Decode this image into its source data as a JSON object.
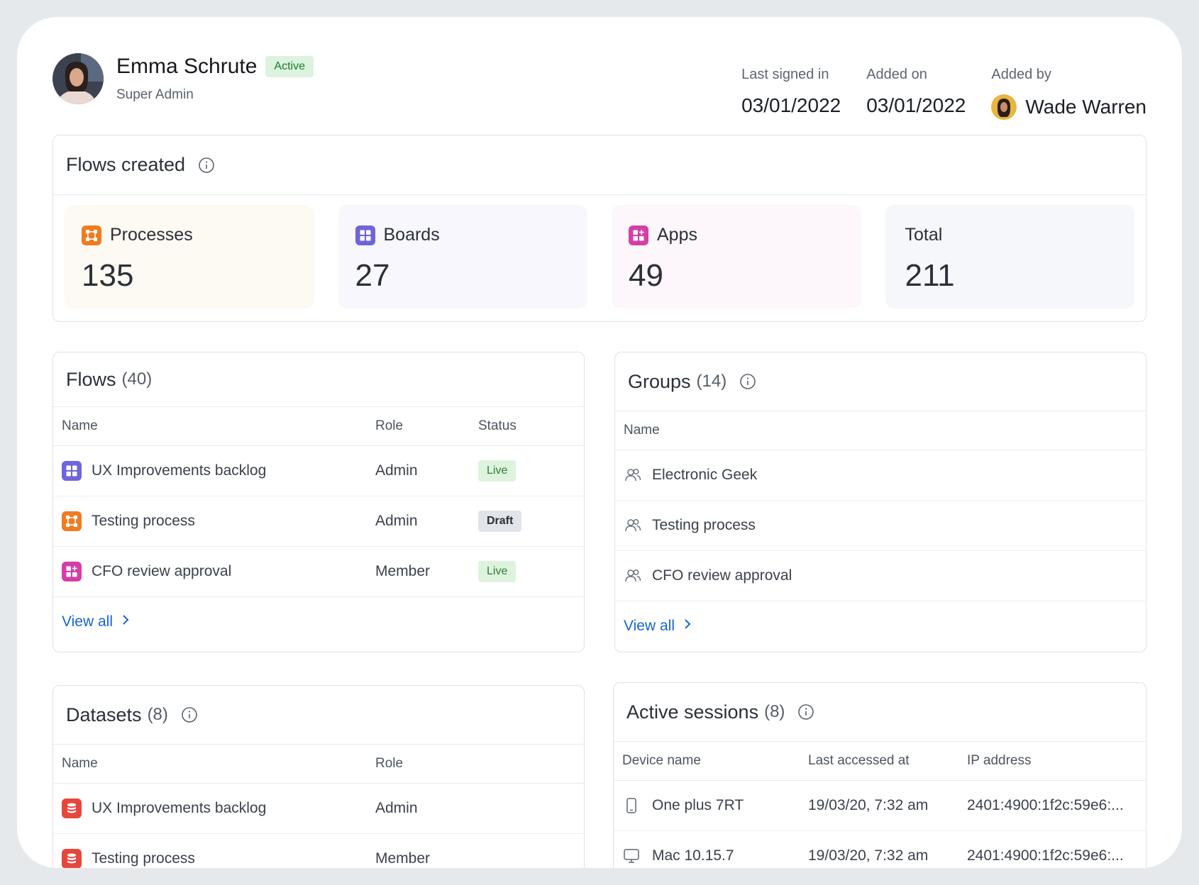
{
  "user": {
    "name": "Emma Schrute",
    "status": "Active",
    "role": "Super Admin"
  },
  "meta": {
    "last_signed_in_label": "Last signed in",
    "last_signed_in_value": "03/01/2022",
    "added_on_label": "Added on",
    "added_on_value": "03/01/2022",
    "added_by_label": "Added by",
    "added_by_value": "Wade Warren"
  },
  "flows_created": {
    "title": "Flows created",
    "stats": [
      {
        "label": "Processes",
        "value": "135",
        "icon": "process-icon",
        "color": "#f07c21"
      },
      {
        "label": "Boards",
        "value": "27",
        "icon": "board-icon",
        "color": "#6e64dc"
      },
      {
        "label": "Apps",
        "value": "49",
        "icon": "app-icon",
        "color": "#d63ea7"
      },
      {
        "label": "Total",
        "value": "211"
      }
    ]
  },
  "flows": {
    "title": "Flows",
    "count": "(40)",
    "columns": [
      "Name",
      "Role",
      "Status"
    ],
    "rows": [
      {
        "name": "UX Improvements backlog",
        "role": "Admin",
        "status": "Live",
        "icon": "board-icon"
      },
      {
        "name": "Testing process",
        "role": "Admin",
        "status": "Draft",
        "icon": "process-icon"
      },
      {
        "name": "CFO review approval",
        "role": "Member",
        "status": "Live",
        "icon": "app-icon"
      }
    ],
    "view_all": "View all"
  },
  "groups": {
    "title": "Groups",
    "count": "(14)",
    "columns": [
      "Name"
    ],
    "rows": [
      {
        "name": "Electronic Geek",
        "icon": "group-icon"
      },
      {
        "name": "Testing process",
        "icon": "group-icon"
      },
      {
        "name": "CFO review approval",
        "icon": "group-icon"
      }
    ],
    "view_all": "View all"
  },
  "datasets": {
    "title": "Datasets",
    "count": "(8)",
    "columns": [
      "Name",
      "Role"
    ],
    "rows": [
      {
        "name": "UX Improvements backlog",
        "role": "Admin",
        "icon": "database-icon"
      },
      {
        "name": "Testing process",
        "role": "Member",
        "icon": "database-icon"
      }
    ]
  },
  "sessions": {
    "title": "Active sessions",
    "count": "(8)",
    "columns": [
      "Device name",
      "Last accessed at",
      "IP address"
    ],
    "rows": [
      {
        "device": "One plus 7RT",
        "accessed": "19/03/20, 7:32 am",
        "ip": "2401:4900:1f2c:59e6:...",
        "icon": "phone-icon"
      },
      {
        "device": "Mac 10.15.7",
        "accessed": "19/03/20, 7:32 am",
        "ip": "2401:4900:1f2c:59e6:...",
        "icon": "monitor-icon"
      }
    ]
  },
  "colors": {
    "accent": "#1565d8",
    "live_bg": "#ddf3de",
    "draft_bg": "#e1e4e9",
    "dataset": "#e5473d"
  }
}
